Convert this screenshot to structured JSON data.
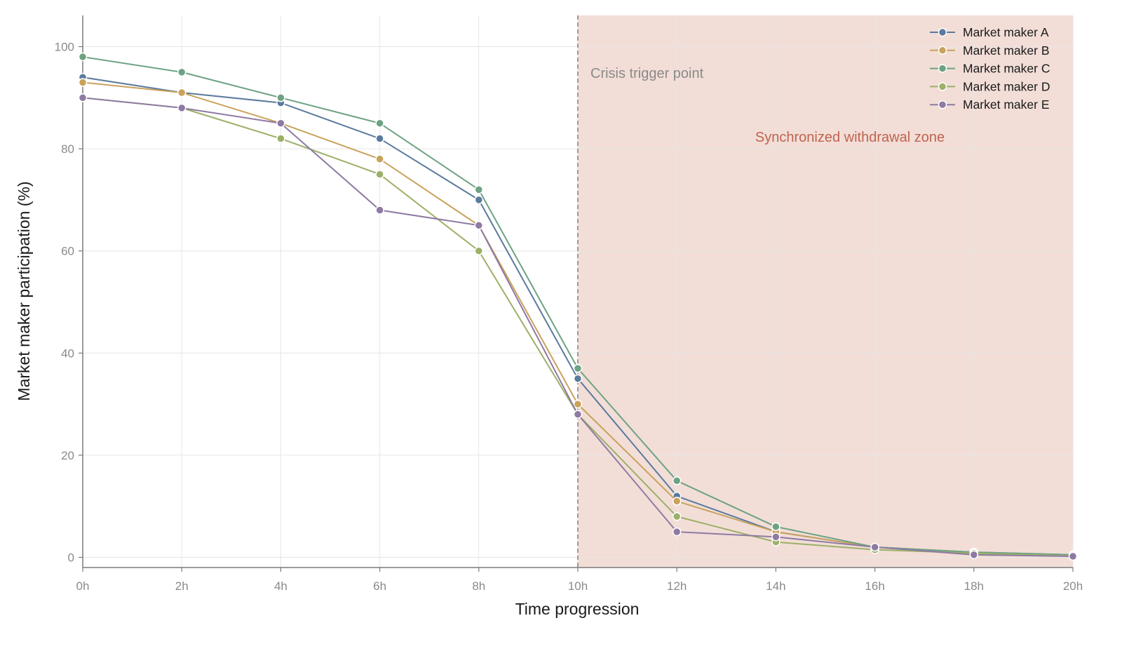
{
  "chart_data": {
    "type": "line",
    "xlabel": "Time progression",
    "ylabel": "Market maker participation (%)",
    "categories": [
      "0h",
      "2h",
      "4h",
      "6h",
      "8h",
      "10h",
      "12h",
      "14h",
      "16h",
      "18h",
      "20h"
    ],
    "x": [
      0,
      2,
      4,
      6,
      8,
      10,
      12,
      14,
      16,
      18,
      20
    ],
    "xlim": [
      0,
      20
    ],
    "ylim": [
      -2,
      106
    ],
    "yticks": [
      0,
      20,
      40,
      60,
      80,
      100
    ],
    "grid": true,
    "legend_position": "top-right",
    "series": [
      {
        "name": "Market maker A",
        "color": "#5b7a9e",
        "values": [
          94,
          91,
          89,
          82,
          70,
          35,
          12,
          5,
          2,
          1,
          0.5
        ]
      },
      {
        "name": "Market maker B",
        "color": "#c9a25b",
        "values": [
          93,
          91,
          85,
          78,
          65,
          30,
          11,
          5,
          2,
          0.5,
          0.3
        ]
      },
      {
        "name": "Market maker C",
        "color": "#6da283",
        "values": [
          98,
          95,
          90,
          85,
          72,
          37,
          15,
          6,
          2,
          1,
          0.5
        ]
      },
      {
        "name": "Market maker D",
        "color": "#9cb068",
        "values": [
          90,
          88,
          82,
          75,
          60,
          28,
          8,
          3,
          1.5,
          0.8,
          0.3
        ]
      },
      {
        "name": "Market maker E",
        "color": "#8f7aa3",
        "values": [
          90,
          88,
          85,
          68,
          65,
          28,
          5,
          4,
          2,
          0.5,
          0.2
        ]
      }
    ],
    "annotations": {
      "trigger_x": 10,
      "trigger_label": "Crisis trigger point",
      "zone_start": 10,
      "zone_end": 20,
      "zone_label": "Synchronized withdrawal zone",
      "zone_color": "#f2ded7",
      "zone_label_color": "#c0634f",
      "trigger_line_color": "#9a8f8c"
    }
  }
}
